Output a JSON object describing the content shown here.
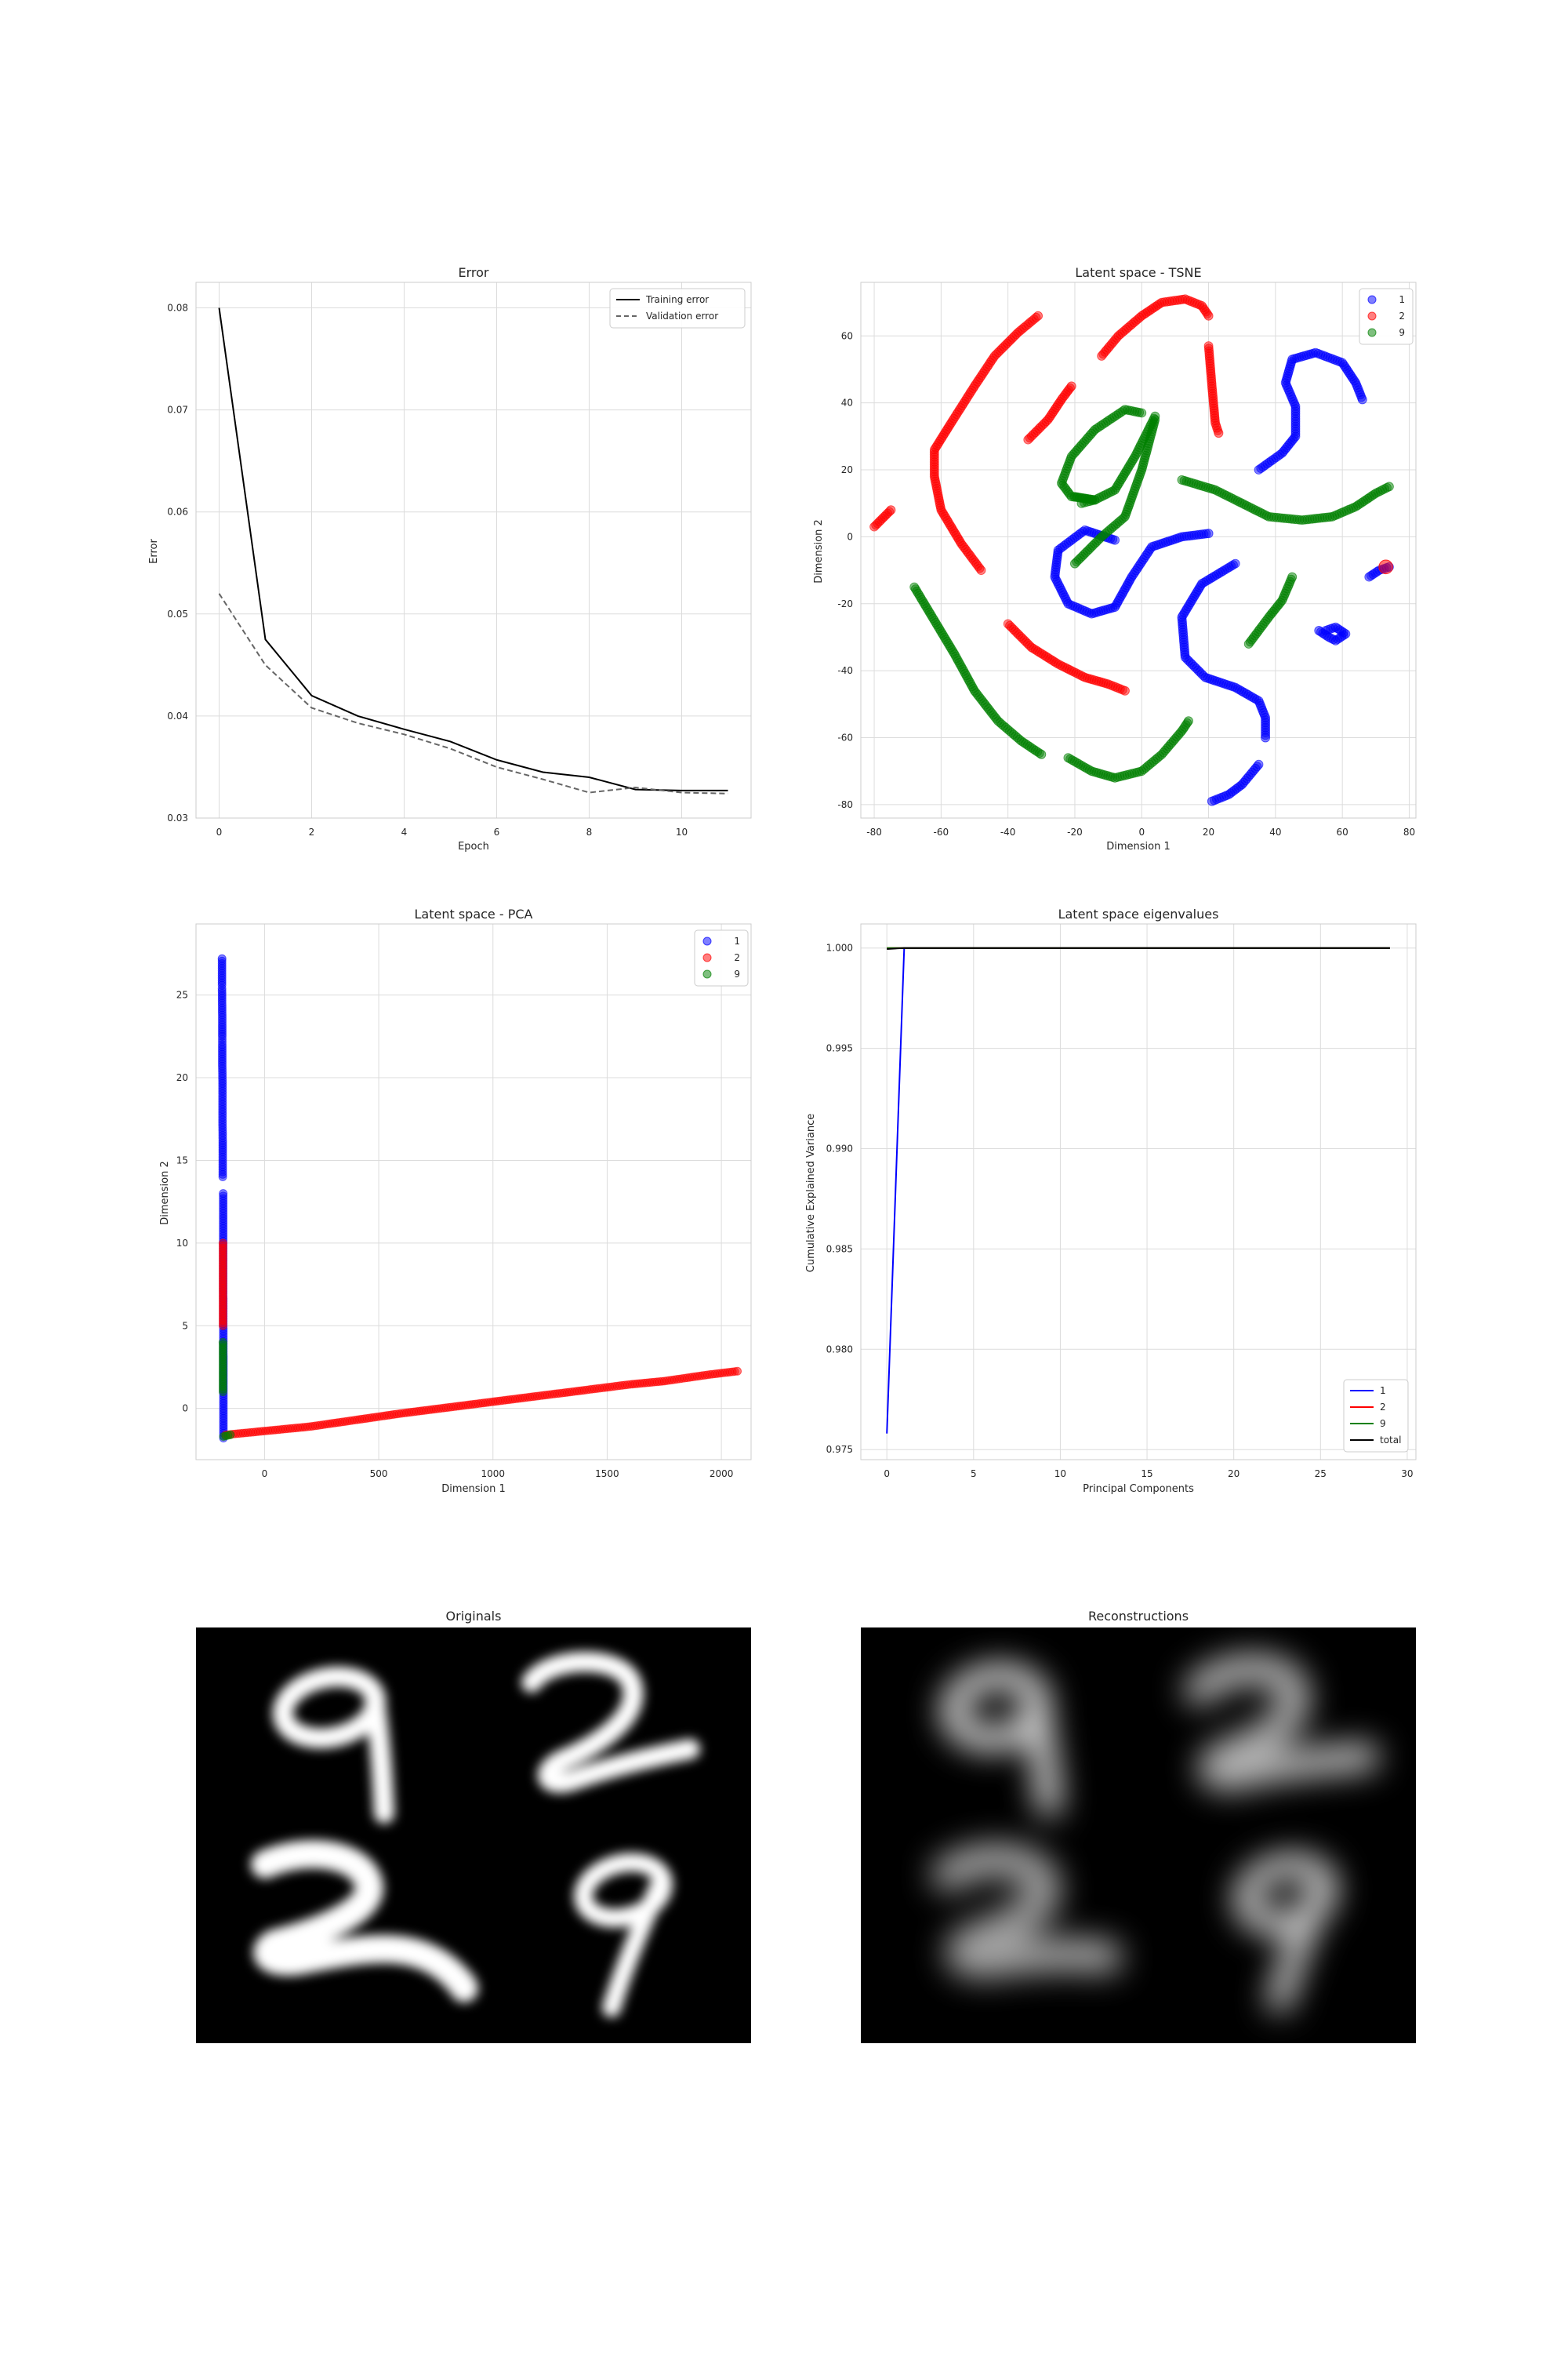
{
  "charts": {
    "error": {
      "type": "line",
      "title": "Error",
      "xlabel": "Epoch",
      "ylabel": "Error",
      "xlim": [
        -0.5,
        11.5
      ],
      "ylim": [
        0.03,
        0.0825
      ],
      "xticks": [
        0,
        2,
        4,
        6,
        8,
        10
      ],
      "yticks": [
        0.03,
        0.04,
        0.05,
        0.06,
        0.07,
        0.08
      ],
      "legend": "top-right",
      "grid": true,
      "series": [
        {
          "name": "Training error",
          "color": "#000000",
          "dash": "solid",
          "x": [
            0,
            1,
            2,
            3,
            4,
            5,
            6,
            7,
            8,
            9,
            10,
            11
          ],
          "y": [
            0.08,
            0.0475,
            0.042,
            0.04,
            0.0387,
            0.0375,
            0.0357,
            0.0345,
            0.034,
            0.0328,
            0.0327,
            0.0327
          ]
        },
        {
          "name": "Validation error",
          "color": "#666666",
          "dash": "dashed",
          "x": [
            0,
            1,
            2,
            3,
            4,
            5,
            6,
            7,
            8,
            9,
            10,
            11
          ],
          "y": [
            0.052,
            0.045,
            0.0408,
            0.0393,
            0.0382,
            0.0368,
            0.035,
            0.0338,
            0.0325,
            0.033,
            0.0325,
            0.0324
          ]
        }
      ]
    },
    "tsne": {
      "type": "scatter",
      "title": "Latent space - TSNE",
      "xlabel": "Dimension 1",
      "ylabel": "Dimension 2",
      "xlim": [
        -84,
        82
      ],
      "ylim": [
        -84,
        76
      ],
      "xticks": [
        -80,
        -60,
        -40,
        -20,
        0,
        20,
        40,
        60,
        80
      ],
      "yticks": [
        -80,
        -60,
        -40,
        -20,
        0,
        20,
        40,
        60
      ],
      "legend": "top-right",
      "grid": true,
      "series": [
        {
          "name": "1",
          "color": "#0000ff",
          "strokes": [
            [
              [
                -8,
                -1
              ],
              [
                -17,
                2
              ],
              [
                -25,
                -4
              ],
              [
                -26,
                -12
              ],
              [
                -22,
                -20
              ],
              [
                -15,
                -23
              ],
              [
                -8,
                -21
              ],
              [
                -3,
                -12
              ],
              [
                3,
                -3
              ],
              [
                12,
                0
              ],
              [
                20,
                1
              ]
            ],
            [
              [
                28,
                -8
              ],
              [
                18,
                -14
              ],
              [
                12,
                -24
              ],
              [
                13,
                -36
              ],
              [
                19,
                -42
              ],
              [
                28,
                -45
              ],
              [
                35,
                -49
              ],
              [
                37,
                -54
              ],
              [
                37,
                -60
              ]
            ],
            [
              [
                35,
                -68
              ],
              [
                30,
                -74
              ],
              [
                26,
                -77
              ],
              [
                21,
                -79
              ]
            ],
            [
              [
                35,
                20
              ],
              [
                42,
                25
              ],
              [
                46,
                30
              ],
              [
                46,
                39
              ],
              [
                43,
                46
              ],
              [
                45,
                53
              ],
              [
                52,
                55
              ],
              [
                60,
                52
              ],
              [
                64,
                46
              ],
              [
                66,
                41
              ]
            ],
            [
              [
                68,
                -12
              ],
              [
                71,
                -10
              ],
              [
                74,
                -9
              ]
            ],
            [
              [
                55,
                -28
              ],
              [
                58,
                -27
              ],
              [
                61,
                -29
              ],
              [
                58,
                -31
              ],
              [
                56,
                -30
              ],
              [
                53,
                -28
              ]
            ]
          ]
        },
        {
          "name": "2",
          "color": "#ff0000",
          "strokes": [
            [
              [
                -80,
                3
              ],
              [
                -77,
                6
              ],
              [
                -75,
                8
              ]
            ],
            [
              [
                -48,
                -10
              ],
              [
                -54,
                -2
              ],
              [
                -60,
                8
              ],
              [
                -62,
                18
              ],
              [
                -62,
                26
              ],
              [
                -57,
                34
              ],
              [
                -50,
                45
              ],
              [
                -44,
                54
              ],
              [
                -37,
                61
              ],
              [
                -31,
                66
              ]
            ],
            [
              [
                -34,
                29
              ],
              [
                -28,
                35
              ],
              [
                -24,
                41
              ],
              [
                -21,
                45
              ]
            ],
            [
              [
                -40,
                -26
              ],
              [
                -33,
                -33
              ],
              [
                -25,
                -38
              ],
              [
                -17,
                -42
              ],
              [
                -10,
                -44
              ],
              [
                -5,
                -46
              ]
            ],
            [
              [
                -12,
                54
              ],
              [
                -7,
                60
              ],
              [
                0,
                66
              ],
              [
                6,
                70
              ],
              [
                13,
                71
              ],
              [
                18,
                69
              ],
              [
                20,
                66
              ]
            ],
            [
              [
                20,
                57
              ],
              [
                21,
                45
              ],
              [
                22,
                34
              ],
              [
                23,
                31
              ]
            ],
            [
              [
                73,
                -9
              ]
            ]
          ]
        },
        {
          "name": "9",
          "color": "#008000",
          "strokes": [
            [
              [
                -68,
                -15
              ],
              [
                -62,
                -25
              ],
              [
                -56,
                -35
              ],
              [
                -50,
                -46
              ],
              [
                -43,
                -55
              ],
              [
                -36,
                -61
              ],
              [
                -30,
                -65
              ]
            ],
            [
              [
                -22,
                -66
              ],
              [
                -15,
                -70
              ],
              [
                -8,
                -72
              ],
              [
                0,
                -70
              ],
              [
                6,
                -65
              ],
              [
                12,
                -58
              ],
              [
                14,
                -55
              ]
            ],
            [
              [
                0,
                37
              ],
              [
                -5,
                38
              ],
              [
                -14,
                32
              ],
              [
                -21,
                24
              ],
              [
                -24,
                16
              ],
              [
                -21,
                12
              ],
              [
                -14,
                11
              ],
              [
                -8,
                14
              ],
              [
                -2,
                24
              ],
              [
                2,
                32
              ],
              [
                4,
                36
              ]
            ],
            [
              [
                4,
                35
              ],
              [
                0,
                20
              ],
              [
                -5,
                6
              ],
              [
                -12,
                0
              ],
              [
                -20,
                -8
              ]
            ],
            [
              [
                -20,
                12
              ],
              [
                -14,
                11
              ],
              [
                -18,
                10
              ]
            ],
            [
              [
                12,
                17
              ],
              [
                22,
                14
              ],
              [
                30,
                10
              ],
              [
                38,
                6
              ],
              [
                48,
                5
              ],
              [
                57,
                6
              ],
              [
                64,
                9
              ],
              [
                70,
                13
              ],
              [
                74,
                15
              ]
            ],
            [
              [
                32,
                -32
              ],
              [
                38,
                -24
              ],
              [
                42,
                -19
              ],
              [
                45,
                -12
              ]
            ]
          ]
        }
      ]
    },
    "pca": {
      "type": "scatter",
      "title": "Latent space - PCA",
      "xlabel": "Dimension 1",
      "ylabel": "Dimension 2",
      "xlim": [
        -300,
        2130
      ],
      "ylim": [
        -3.1,
        29.3
      ],
      "xticks": [
        0,
        500,
        1000,
        1500,
        2000
      ],
      "yticks": [
        0,
        5,
        10,
        15,
        20,
        25
      ],
      "legend": "top-right",
      "grid": true,
      "series": [
        {
          "name": "1",
          "color": "#0000ff",
          "strokes": [
            [
              [
                -180,
                -1.8
              ],
              [
                -180,
                3
              ],
              [
                -181,
                8
              ],
              [
                -181,
                13
              ]
            ],
            [
              [
                -183,
                14
              ],
              [
                -183,
                15.5
              ],
              [
                -183,
                16.2
              ],
              [
                -184,
                17.3
              ],
              [
                -184,
                19.5
              ],
              [
                -184,
                19.8
              ],
              [
                -185,
                20.7
              ],
              [
                -185,
                22
              ],
              [
                -185,
                22.5
              ],
              [
                -185,
                23.2
              ],
              [
                -185,
                23.5
              ],
              [
                -186,
                25.4
              ],
              [
                -186,
                25.6
              ],
              [
                -186,
                27.2
              ]
            ]
          ]
        },
        {
          "name": "2",
          "color": "#ff0000",
          "strokes": [
            [
              [
                -170,
                -1.6
              ],
              [
                200,
                -1.1
              ],
              [
                600,
                -0.3
              ],
              [
                1000,
                0.4
              ],
              [
                1400,
                1.1
              ],
              [
                1600,
                1.45
              ],
              [
                1750,
                1.65
              ],
              [
                1850,
                1.85
              ],
              [
                1950,
                2.05
              ],
              [
                2070,
                2.25
              ]
            ],
            [
              [
                -182,
                5
              ],
              [
                -182,
                10
              ]
            ]
          ]
        },
        {
          "name": "9",
          "color": "#008000",
          "strokes": [
            [
              [
                -180,
                -1.7
              ],
              [
                -150,
                -1.6
              ]
            ],
            [
              [
                -182,
                1
              ],
              [
                -182,
                4
              ]
            ]
          ]
        }
      ]
    },
    "eigen": {
      "type": "line",
      "title": "Latent space eigenvalues",
      "xlabel": "Principal Components",
      "ylabel": "Cumulative Explained Variance",
      "xlim": [
        -1.5,
        30.5
      ],
      "ylim": [
        0.9745,
        1.0012
      ],
      "xticks": [
        0,
        5,
        10,
        15,
        20,
        25,
        30
      ],
      "yticks": [
        0.975,
        0.98,
        0.985,
        0.99,
        0.995,
        1.0
      ],
      "legend": "lower-right",
      "grid": true,
      "series": [
        {
          "name": "1",
          "color": "#0000ff",
          "x": [
            0,
            1,
            2,
            29
          ],
          "y": [
            0.9758,
            1.0,
            1.0,
            1.0
          ]
        },
        {
          "name": "2",
          "color": "#ff0000",
          "x": [
            0,
            29
          ],
          "y": [
            1.0,
            1.0
          ]
        },
        {
          "name": "9",
          "color": "#008000",
          "x": [
            0,
            29
          ],
          "y": [
            1.0,
            1.0
          ]
        },
        {
          "name": "total",
          "color": "#000000",
          "x": [
            0,
            1,
            2,
            29
          ],
          "y": [
            0.99995,
            1.0,
            1.0,
            1.0
          ]
        }
      ]
    }
  },
  "images": {
    "originals": {
      "title": "Originals"
    },
    "reconstructions": {
      "title": "Reconstructions"
    }
  }
}
